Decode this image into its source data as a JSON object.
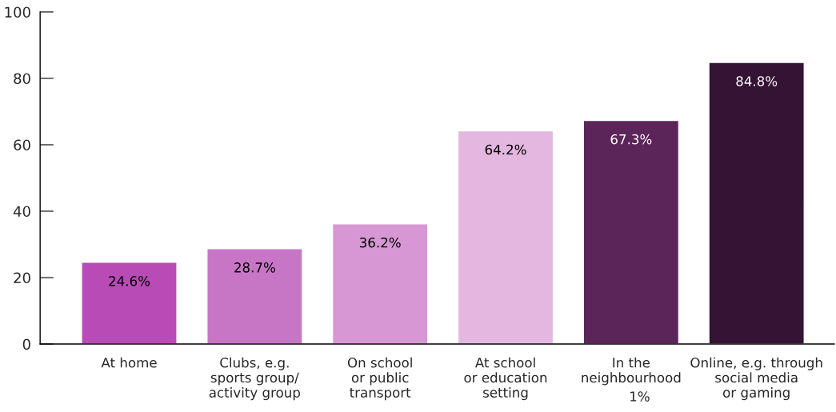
{
  "chart_data": {
    "type": "bar",
    "categories": [
      "At home",
      "Clubs, e.g.\nsports group/\nactivity group",
      "On school\nor public\ntransport",
      "At school\nor education\nsetting",
      "In the\nneighbourhood",
      "Online, e.g. through\nsocial media\nor gaming"
    ],
    "values": [
      24.6,
      28.7,
      36.2,
      64.2,
      67.3,
      84.8
    ],
    "colors": [
      "#b84bb6",
      "#c776c6",
      "#d797d5",
      "#e4b7e1",
      "#5c2559",
      "#351334"
    ],
    "value_labels": [
      "24.6%",
      "28.7%",
      "36.2%",
      "64.2%",
      "67.3%",
      "84.8%"
    ],
    "ylim": [
      0,
      100
    ],
    "yticks": [
      0,
      20,
      40,
      60,
      80,
      100
    ],
    "grid": false,
    "legend": false,
    "annotations": [
      "1%"
    ]
  }
}
